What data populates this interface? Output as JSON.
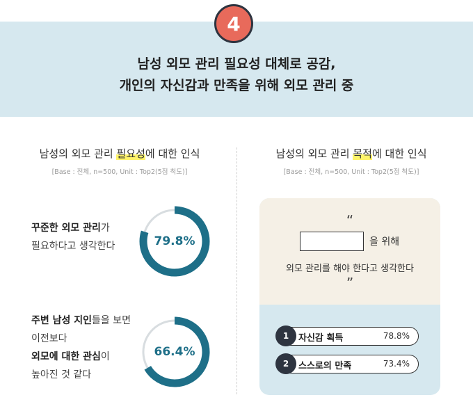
{
  "badge": {
    "number": "4"
  },
  "headline": {
    "line1": "남성 외모 관리 필요성 대체로 공감,",
    "line2": "개인의 자신감과 만족을 위해 외모 관리 중"
  },
  "left_section": {
    "title_pre": "남성의 외모 관리 ",
    "title_highlight": "필요성",
    "title_post": "에 대한 인식",
    "base_note": "[Base : 전체, n=500, Unit : Top2(5점 척도)]",
    "items": [
      {
        "line1_bold": "꾸준한 외모 관리",
        "line1_rest": "가",
        "line2": "필요하다고 생각한다",
        "value": "79.8%",
        "fraction": 0.798
      },
      {
        "line1_bold": "주변 남성 지인",
        "line1_rest": "들을 보면",
        "line2": "이전보다",
        "line3_bold": "외모에 대한 관심",
        "line3_rest": "이",
        "line4": "높아진 것 같다",
        "value": "66.4%",
        "fraction": 0.664
      }
    ]
  },
  "right_section": {
    "title_pre": "남성의 외모 관리 ",
    "title_highlight": "목적",
    "title_post": "에 대한 인식",
    "base_note": "[Base : 전체, n=500, Unit : Top2(5점 척도)]",
    "quote_open": "“",
    "quote_close": "”",
    "for_text": "을 위해",
    "purpose_line": "외모 관리를 해야 한다고 생각한다",
    "rankings": [
      {
        "rank": "1",
        "label": "자신감 획득",
        "value": "78.8%"
      },
      {
        "rank": "2",
        "label": "스스로의 만족",
        "value": "73.4%"
      }
    ]
  },
  "colors": {
    "accent": "#1e6f88",
    "badge": "#e86a5b",
    "hero_bg": "#d6e8ef",
    "highlight": "#fff46a",
    "track": "#d8dde0"
  }
}
